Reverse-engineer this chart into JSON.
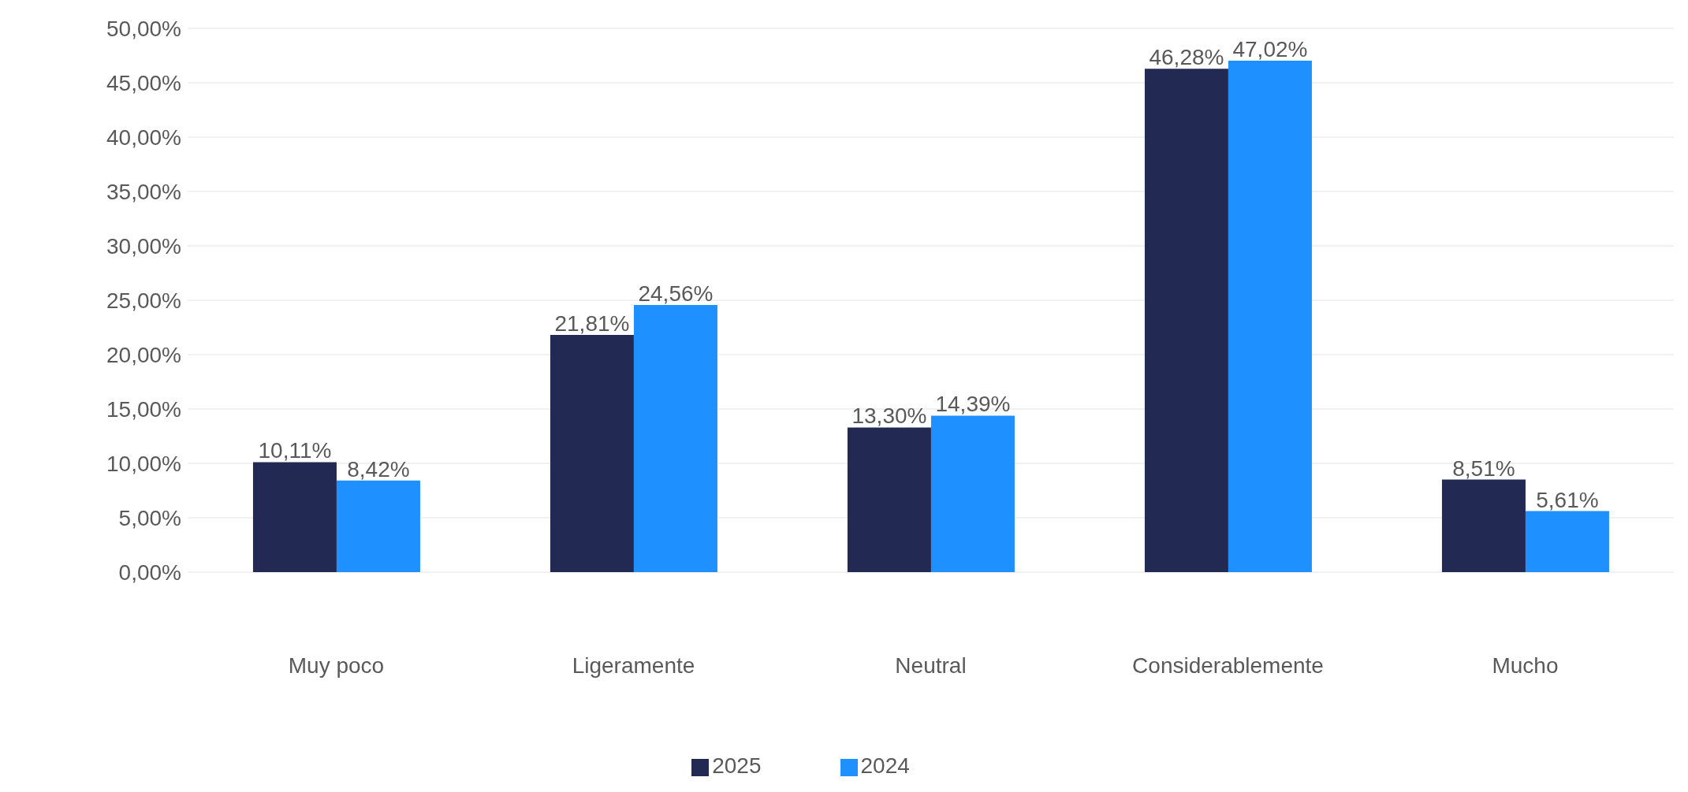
{
  "chart_data": {
    "type": "bar",
    "categories": [
      "Muy poco",
      "Ligeramente",
      "Neutral",
      "Considerablemente",
      "Mucho"
    ],
    "series": [
      {
        "name": "2025",
        "color": "#222a54",
        "values": [
          10.11,
          21.81,
          13.3,
          46.28,
          8.51
        ],
        "value_labels": [
          "10,11%",
          "21,81%",
          "13,30%",
          "46,28%",
          "8,51%"
        ]
      },
      {
        "name": "2024",
        "color": "#1e90ff",
        "values": [
          8.42,
          24.56,
          14.39,
          47.02,
          5.61
        ],
        "value_labels": [
          "8,42%",
          "24,56%",
          "14,39%",
          "47,02%",
          "5,61%"
        ]
      }
    ],
    "ylim": [
      0,
      50
    ],
    "yticks": [
      {
        "value": 0,
        "label": "0,00%"
      },
      {
        "value": 5,
        "label": "5,00%"
      },
      {
        "value": 10,
        "label": "10,00%"
      },
      {
        "value": 15,
        "label": "15,00%"
      },
      {
        "value": 20,
        "label": "20,00%"
      },
      {
        "value": 25,
        "label": "25,00%"
      },
      {
        "value": 30,
        "label": "30,00%"
      },
      {
        "value": 35,
        "label": "35,00%"
      },
      {
        "value": 40,
        "label": "40,00%"
      },
      {
        "value": 45,
        "label": "45,00%"
      },
      {
        "value": 50,
        "label": "50,00%"
      }
    ],
    "grid": "y",
    "legend": "bottom"
  }
}
